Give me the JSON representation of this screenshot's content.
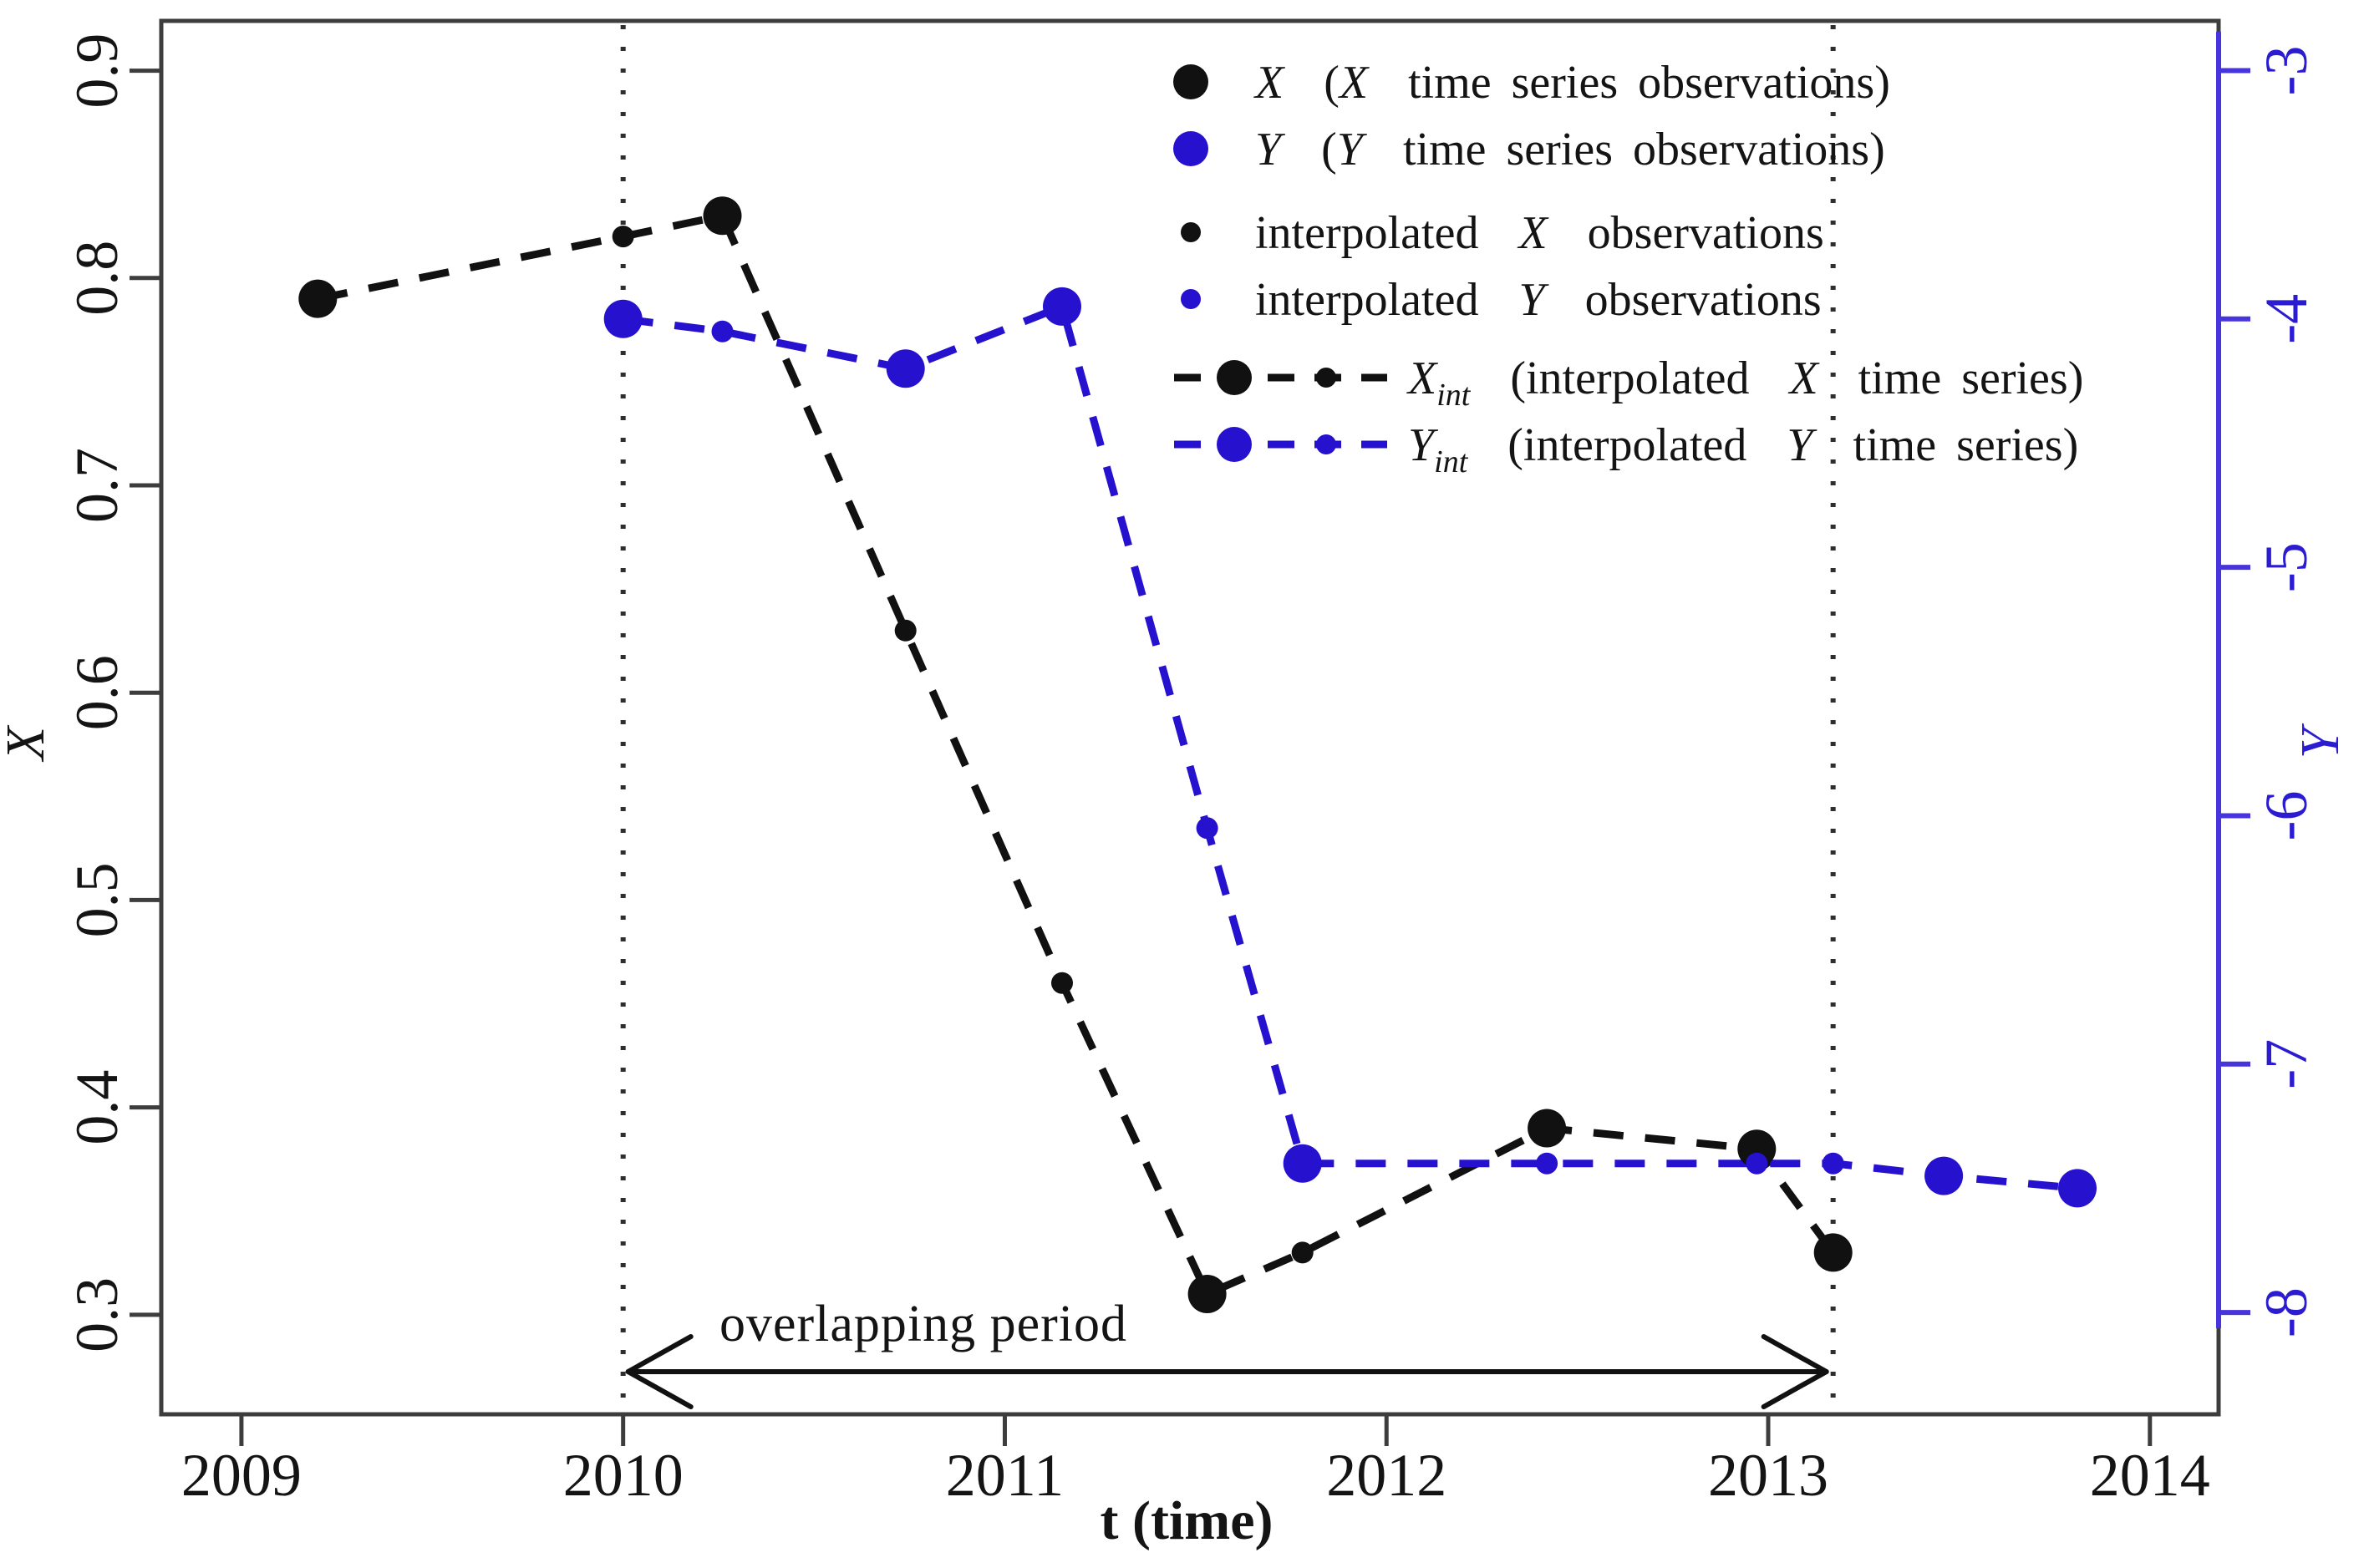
{
  "figure": {
    "background": "#ffffff"
  },
  "colors": {
    "black_series": "#111111",
    "blue_series": "#2611cf",
    "blue_axis": "#4734dc",
    "blue_tick_text": "#2b1cd2",
    "frame_gray": "#3d3d3d"
  },
  "axes": {
    "x": {
      "label": "t (time)",
      "tick_labels": [
        "2009",
        "2010",
        "2011",
        "2012",
        "2013",
        "2014"
      ]
    },
    "y_left": {
      "label": "X",
      "tick_labels": [
        "0.9",
        "0.8",
        "0.7",
        "0.6",
        "0.5",
        "0.4",
        "0.3"
      ]
    },
    "y_right": {
      "label": "Y",
      "tick_labels": [
        "-3",
        "-4",
        "-5",
        "-6",
        "-7",
        "-8"
      ]
    }
  },
  "annotations": {
    "overlap_label": "overlapping period",
    "overlap_start": 2010.0,
    "overlap_end": 2013.17
  },
  "legend": {
    "items": [
      {
        "id": "x-observations",
        "type": "dot",
        "size": "large",
        "color": "black",
        "parts": [
          {
            "t": "X",
            "i": true
          },
          {
            "t": "  ("
          },
          {
            "t": "X",
            "i": true
          },
          {
            "t": "  time series observations)"
          }
        ]
      },
      {
        "id": "y-observations",
        "type": "dot",
        "size": "large",
        "color": "blue",
        "parts": [
          {
            "t": "Y",
            "i": true
          },
          {
            "t": "  ("
          },
          {
            "t": "Y",
            "i": true
          },
          {
            "t": "  time series observations)"
          }
        ]
      },
      {
        "id": "interpolated-x-observations",
        "type": "dot",
        "size": "small",
        "color": "black",
        "parts": [
          {
            "t": "interpolated  "
          },
          {
            "t": "X",
            "i": true
          },
          {
            "t": "  observations"
          }
        ]
      },
      {
        "id": "interpolated-y-observations",
        "type": "dot",
        "size": "small",
        "color": "blue",
        "parts": [
          {
            "t": "interpolated  "
          },
          {
            "t": "Y",
            "i": true
          },
          {
            "t": "  observations"
          }
        ]
      },
      {
        "id": "x-int-line",
        "type": "line",
        "color": "black",
        "parts": [
          {
            "t": "X",
            "i": true
          },
          {
            "t": "int",
            "i": true,
            "sub": true
          },
          {
            "t": "  (interpolated  "
          },
          {
            "t": "X",
            "i": true
          },
          {
            "t": "  time series)"
          }
        ]
      },
      {
        "id": "y-int-line",
        "type": "line",
        "color": "blue",
        "parts": [
          {
            "t": "Y",
            "i": true
          },
          {
            "t": "int",
            "i": true,
            "sub": true
          },
          {
            "t": "  (interpolated  "
          },
          {
            "t": "Y",
            "i": true
          },
          {
            "t": "  time series)"
          }
        ]
      }
    ]
  },
  "chart_data": {
    "type": "line",
    "title": "",
    "xlabel": "t (time)",
    "ylabel_left": "X",
    "ylabel_right": "Y",
    "grid": false,
    "legend_position": "top-right",
    "x_range": [
      2008.79,
      2014.18
    ],
    "y_left_range": [
      0.252,
      0.924
    ],
    "y_right_range": [
      -8.41,
      -2.8
    ],
    "x_ticks": [
      2009,
      2010,
      2011,
      2012,
      2013,
      2014
    ],
    "y_left_ticks": [
      0.9,
      0.8,
      0.7,
      0.6,
      0.5,
      0.4,
      0.3
    ],
    "y_right_ticks": [
      -3,
      -4,
      -5,
      -6,
      -7,
      -8
    ],
    "vlines": [
      2010.0,
      2013.17
    ],
    "overlap_arrow": {
      "from": 2010.0,
      "to": 2013.17
    },
    "series": [
      {
        "name": "X observations",
        "axis": "left",
        "marker": "large",
        "color": "black",
        "points": [
          [
            2009.2,
            0.79
          ],
          [
            2010.26,
            0.83
          ],
          [
            2011.53,
            0.31
          ],
          [
            2012.42,
            0.39
          ],
          [
            2012.97,
            0.38
          ],
          [
            2013.17,
            0.33
          ]
        ]
      },
      {
        "name": "interpolated X observations",
        "axis": "left",
        "marker": "small",
        "color": "black",
        "points": [
          [
            2010.0,
            0.82
          ],
          [
            2010.74,
            0.63
          ],
          [
            2011.15,
            0.46
          ],
          [
            2011.78,
            0.33
          ]
        ]
      },
      {
        "name": "Y observations",
        "axis": "right",
        "marker": "large",
        "color": "blue",
        "points": [
          [
            2010.0,
            -4.0
          ],
          [
            2010.74,
            -4.2
          ],
          [
            2011.15,
            -3.95
          ],
          [
            2011.78,
            -7.4
          ],
          [
            2013.46,
            -7.45
          ],
          [
            2013.81,
            -7.5
          ]
        ]
      },
      {
        "name": "interpolated Y observations",
        "axis": "right",
        "marker": "small",
        "color": "blue",
        "points": [
          [
            2010.26,
            -4.05
          ],
          [
            2011.53,
            -6.05
          ],
          [
            2012.42,
            -7.4
          ],
          [
            2012.97,
            -7.4
          ],
          [
            2013.17,
            -7.4
          ]
        ]
      }
    ]
  }
}
